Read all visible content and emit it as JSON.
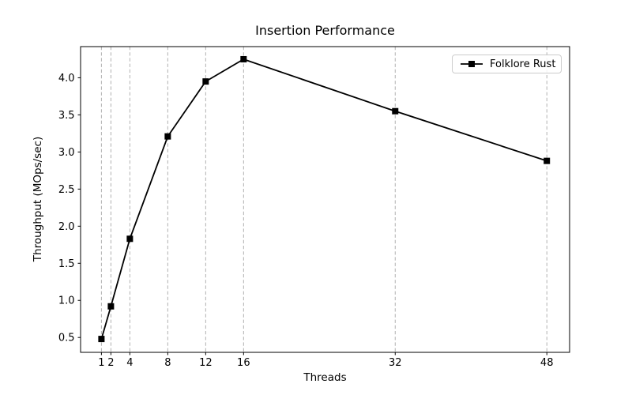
{
  "figure": {
    "background": "#ffffff"
  },
  "chart_data": {
    "type": "line",
    "title": "Insertion Performance",
    "xlabel": "Threads",
    "ylabel": "Throughput (MOps/sec)",
    "x": [
      1,
      2,
      4,
      8,
      12,
      16,
      32,
      48
    ],
    "series": [
      {
        "name": "Folklore Rust",
        "values": [
          0.48,
          0.92,
          1.83,
          3.21,
          3.95,
          4.25,
          3.55,
          2.88
        ],
        "color": "#000000",
        "marker": "square"
      }
    ],
    "xticks": [
      1,
      2,
      4,
      8,
      12,
      16,
      32,
      48
    ],
    "yticks": [
      0.5,
      1.0,
      1.5,
      2.0,
      2.5,
      3.0,
      3.5,
      4.0
    ],
    "ytick_labels": [
      "0.5",
      "1.0",
      "1.5",
      "2.0",
      "2.5",
      "3.0",
      "3.5",
      "4.0"
    ],
    "xlim": [
      -1.2,
      50.4
    ],
    "ylim": [
      0.3,
      4.42
    ],
    "grid": {
      "vertical": true,
      "horizontal": false,
      "style": "dashed",
      "color": "#b0b0b0"
    },
    "legend": {
      "position": "upper right"
    },
    "axis_color": "#000000"
  }
}
